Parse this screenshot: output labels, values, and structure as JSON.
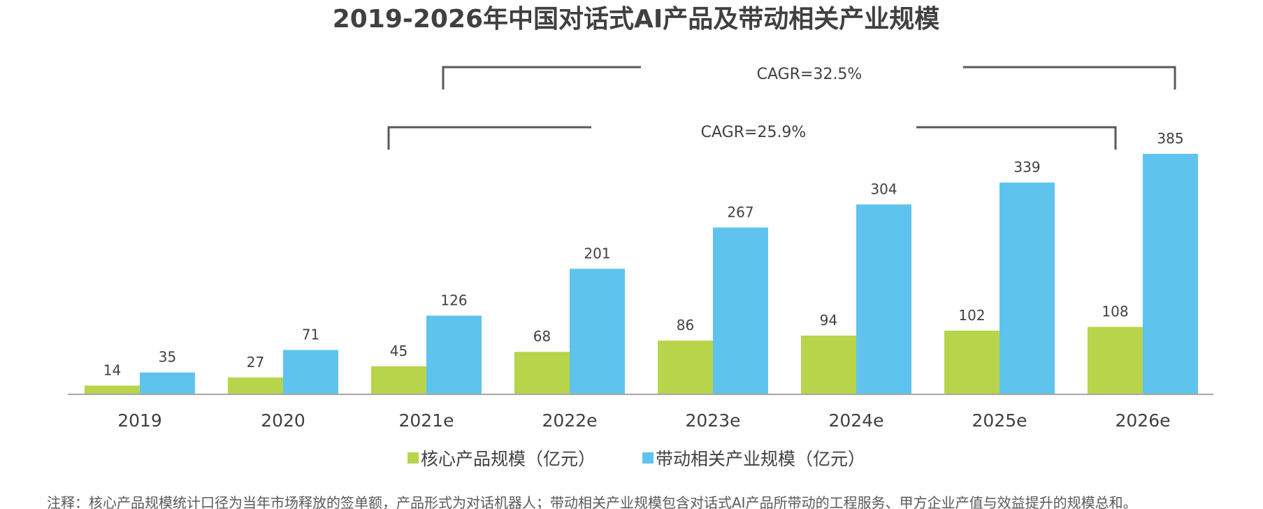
{
  "chart_data": {
    "type": "bar",
    "title": "2019-2026年中国对话式AI产品及带动相关产业规模",
    "categories": [
      "2019",
      "2020",
      "2021e",
      "2022e",
      "2023e",
      "2024e",
      "2025e",
      "2026e"
    ],
    "series": [
      {
        "name": "核心产品规模（亿元）",
        "color": "#b8d44a",
        "values": [
          14,
          27,
          45,
          68,
          86,
          94,
          102,
          108
        ]
      },
      {
        "name": "带动相关产业规模（亿元）",
        "color": "#5ec4ee",
        "values": [
          35,
          71,
          126,
          201,
          267,
          304,
          339,
          385
        ]
      }
    ],
    "ylim": [
      0,
      385
    ],
    "grid": false,
    "legend": "bottom-center",
    "annotations": {
      "cagr_related": "CAGR=32.5%",
      "cagr_core": "CAGR=25.9%"
    },
    "note": "注释：核心产品规模统计口径为当年市场释放的签单额，产品形式为对话机器人；带动相关产业规模包含对话式AI产品所带动的工程服务、甲方企业产值与效益提升的规模总和。"
  }
}
